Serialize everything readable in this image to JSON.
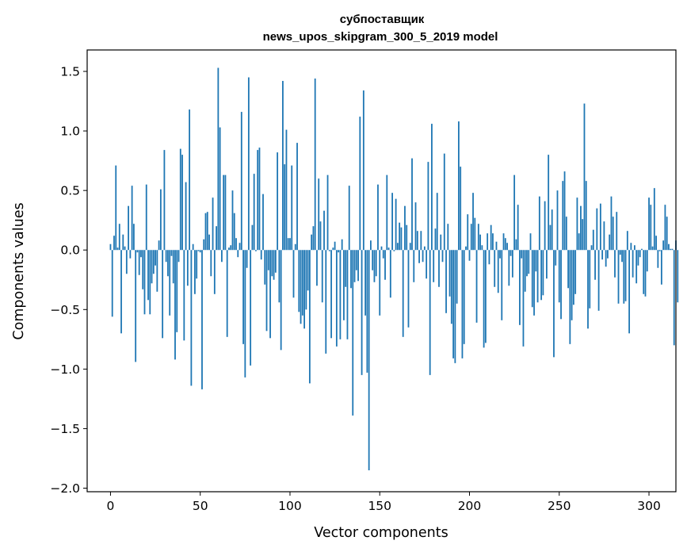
{
  "chart_data": {
    "type": "bar",
    "title": "субпоставщик",
    "subtitle": "news_upos_skipgram_300_5_2019 model",
    "xlabel": "Vector components",
    "ylabel": "Components values",
    "xlim": [
      -13,
      315
    ],
    "ylim": [
      -2.03,
      1.68
    ],
    "xticks": [
      0,
      50,
      100,
      150,
      200,
      250,
      300
    ],
    "yticks": [
      -2.0,
      -1.5,
      -1.0,
      -0.5,
      0.0,
      0.5,
      1.0,
      1.5
    ],
    "ytick_labels": [
      "−2.0",
      "−1.5",
      "−1.0",
      "−0.5",
      "0.0",
      "0.5",
      "1.0",
      "1.5"
    ],
    "bar_color": "#1f77b4",
    "grid": false,
    "legend": "none",
    "values": [
      0.05,
      -0.56,
      0.12,
      0.71,
      0.02,
      0.22,
      -0.7,
      0.13,
      0.03,
      -0.2,
      0.37,
      -0.07,
      0.54,
      0.22,
      -0.94,
      -0.02,
      -0.21,
      -0.06,
      -0.33,
      -0.54,
      0.55,
      -0.42,
      -0.54,
      -0.28,
      -0.2,
      -0.13,
      -0.35,
      0.08,
      0.51,
      -0.74,
      0.84,
      -0.1,
      -0.22,
      -0.55,
      -0.05,
      -0.28,
      -0.92,
      -0.69,
      -0.1,
      0.85,
      0.8,
      -0.76,
      0.57,
      -0.3,
      1.18,
      -1.14,
      0.05,
      -0.37,
      -0.24,
      -0.01,
      -0.02,
      -1.17,
      0.09,
      0.31,
      0.32,
      0.13,
      -0.22,
      0.44,
      -0.37,
      0.2,
      1.53,
      1.03,
      -0.1,
      0.63,
      0.63,
      -0.73,
      0.02,
      0.04,
      0.5,
      0.31,
      0.1,
      -0.06,
      0.06,
      1.16,
      -0.79,
      -1.07,
      -0.15,
      1.45,
      -0.97,
      0.21,
      0.64,
      -0.01,
      0.84,
      0.86,
      -0.08,
      0.47,
      -0.29,
      -0.68,
      -0.17,
      -0.74,
      -0.22,
      -0.25,
      -0.19,
      0.82,
      -0.44,
      -0.84,
      1.42,
      0.72,
      1.01,
      0.1,
      0.1,
      0.71,
      -0.4,
      0.05,
      0.9,
      -0.52,
      -0.62,
      -0.55,
      -0.66,
      -0.5,
      -0.34,
      -1.12,
      0.13,
      0.2,
      1.44,
      -0.3,
      0.6,
      0.24,
      -0.44,
      0.33,
      -0.87,
      0.63,
      -0.01,
      -0.74,
      0.02,
      0.07,
      -0.81,
      -0.02,
      -0.75,
      0.09,
      -0.59,
      -0.31,
      -0.75,
      0.54,
      -0.32,
      -1.39,
      -0.27,
      -0.17,
      -0.26,
      1.12,
      -1.05,
      1.34,
      -0.55,
      -1.03,
      -1.85,
      0.08,
      -0.17,
      -0.27,
      -0.22,
      0.55,
      -0.55,
      0.03,
      -0.07,
      -0.25,
      0.63,
      0.02,
      -0.4,
      0.48,
      -0.01,
      0.43,
      0.06,
      0.23,
      0.19,
      -0.73,
      0.37,
      0.21,
      -0.65,
      0.06,
      0.77,
      -0.27,
      0.4,
      0.16,
      -0.11,
      0.16,
      -0.1,
      0.03,
      -0.24,
      0.74,
      -1.05,
      1.06,
      -0.27,
      0.18,
      0.48,
      -0.31,
      0.13,
      -0.1,
      0.81,
      -0.53,
      0.22,
      -0.39,
      -0.62,
      -0.91,
      -0.95,
      -0.45,
      1.08,
      0.7,
      -0.91,
      -0.79,
      0.03,
      0.3,
      -0.09,
      0.22,
      0.48,
      0.27,
      -0.61,
      0.22,
      0.13,
      0.04,
      -0.82,
      -0.78,
      0.14,
      -0.12,
      0.21,
      0.14,
      -0.31,
      0.07,
      -0.36,
      -0.07,
      -0.59,
      0.14,
      0.1,
      0.06,
      -0.3,
      -0.05,
      -0.23,
      0.63,
      0.09,
      0.38,
      -0.63,
      -0.07,
      -0.81,
      -0.35,
      -0.22,
      -0.2,
      0.14,
      -0.48,
      -0.55,
      -0.18,
      -0.44,
      0.45,
      -0.42,
      -0.38,
      0.41,
      -0.24,
      0.8,
      0.21,
      0.34,
      -0.9,
      -0.13,
      0.5,
      -0.44,
      -0.58,
      0.58,
      0.66,
      0.28,
      -0.32,
      -0.79,
      -0.59,
      -0.46,
      -0.37,
      0.44,
      0.14,
      0.37,
      0.26,
      1.23,
      0.58,
      -0.66,
      -0.49,
      0.04,
      0.17,
      -0.25,
      0.35,
      -0.51,
      0.39,
      -0.08,
      0.24,
      -0.14,
      -0.07,
      0.13,
      0.45,
      0.28,
      -0.23,
      0.32,
      -0.45,
      -0.04,
      -0.1,
      -0.45,
      -0.43,
      0.16,
      -0.7,
      0.06,
      -0.23,
      0.04,
      -0.28,
      -0.13,
      -0.06,
      0.01,
      -0.37,
      -0.39,
      -0.18,
      0.44,
      0.38,
      0.03,
      0.52,
      0.12,
      -0.15,
      -0.01,
      -0.29,
      0.08,
      0.38,
      0.28,
      0.05,
      0.01,
      0.01,
      -0.8,
      0.08,
      -0.44
    ]
  }
}
